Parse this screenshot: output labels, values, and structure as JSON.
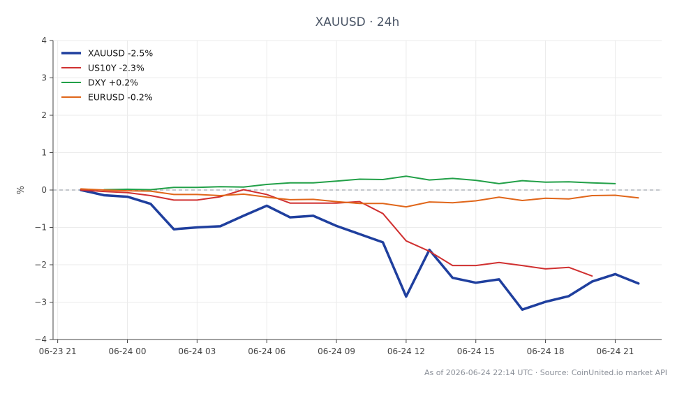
{
  "chart_data": {
    "type": "line",
    "title": "XAUUSD · 24h",
    "ylabel": "%",
    "xlabel": "",
    "ylim": [
      -4,
      4
    ],
    "yticks": [
      4,
      3,
      2,
      1,
      0,
      -1,
      -2,
      -3,
      -4
    ],
    "ytick_labels": [
      "4",
      "3",
      "2",
      "1",
      "0",
      "−1",
      "−2",
      "−3",
      "−4"
    ],
    "xlim": [
      -1.2,
      25
    ],
    "xticks": [
      -1,
      2,
      5,
      8,
      11,
      14,
      17,
      20,
      23
    ],
    "xtick_labels": [
      "06-23 21",
      "06-24 00",
      "06-24 03",
      "06-24 06",
      "06-24 09",
      "06-24 12",
      "06-24 15",
      "06-24 18",
      "06-24 21"
    ],
    "x_hours_start": "06-23 22",
    "grid": true,
    "zero_line": true,
    "legend_position": "top-left",
    "series": [
      {
        "name": "XAUUSD -2.5%",
        "color": "#1f3f9e",
        "width": 3.5,
        "x": [
          0,
          1,
          2,
          3,
          4,
          5,
          6,
          7,
          8,
          9,
          10,
          11,
          12,
          13,
          14,
          15,
          16,
          17,
          18,
          19,
          20,
          21,
          22,
          23,
          24
        ],
        "values": [
          0.0,
          -0.14,
          -0.18,
          -0.37,
          -1.05,
          -1.0,
          -0.97,
          -0.69,
          -0.42,
          -0.73,
          -0.69,
          -0.96,
          -1.18,
          -1.4,
          -2.85,
          -1.6,
          -2.35,
          -2.48,
          -2.39,
          -3.2,
          -2.99,
          -2.84,
          -2.45,
          -2.25,
          -2.5
        ]
      },
      {
        "name": "US10Y -2.3%",
        "color": "#d03030",
        "width": 2,
        "x": [
          0,
          1,
          2,
          3,
          4,
          5,
          6,
          7,
          8,
          9,
          10,
          11,
          12,
          13,
          14,
          15,
          16,
          17,
          18,
          19,
          20,
          21,
          22
        ],
        "values": [
          0.0,
          -0.04,
          -0.07,
          -0.15,
          -0.27,
          -0.27,
          -0.18,
          0.01,
          -0.12,
          -0.35,
          -0.35,
          -0.35,
          -0.31,
          -0.63,
          -1.36,
          -1.64,
          -2.02,
          -2.02,
          -1.94,
          -2.02,
          -2.11,
          -2.07,
          -2.3
        ]
      },
      {
        "name": "DXY +0.2%",
        "color": "#22a048",
        "width": 2,
        "x": [
          1,
          2,
          3,
          4,
          5,
          6,
          7,
          8,
          9,
          10,
          11,
          12,
          13,
          14,
          15,
          16,
          17,
          18,
          19,
          20,
          21,
          22,
          23
        ],
        "values": [
          0.01,
          0.02,
          0.01,
          0.07,
          0.07,
          0.09,
          0.08,
          0.15,
          0.19,
          0.19,
          0.24,
          0.29,
          0.28,
          0.37,
          0.27,
          0.31,
          0.26,
          0.17,
          0.25,
          0.21,
          0.22,
          0.19,
          0.17
        ]
      },
      {
        "name": "EURUSD -0.2%",
        "color": "#e0661a",
        "width": 2,
        "x": [
          0,
          1,
          2,
          3,
          4,
          5,
          6,
          7,
          8,
          9,
          10,
          11,
          12,
          13,
          14,
          15,
          16,
          17,
          18,
          19,
          20,
          21,
          22,
          23,
          24
        ],
        "values": [
          0.03,
          0.0,
          -0.02,
          -0.03,
          -0.12,
          -0.12,
          -0.15,
          -0.11,
          -0.19,
          -0.26,
          -0.25,
          -0.31,
          -0.36,
          -0.36,
          -0.45,
          -0.32,
          -0.34,
          -0.29,
          -0.19,
          -0.28,
          -0.22,
          -0.24,
          -0.15,
          -0.14,
          -0.21
        ]
      }
    ]
  },
  "footer": {
    "text": "As of 2026-06-24 22:14 UTC · Source: CoinUnited.io market API"
  }
}
